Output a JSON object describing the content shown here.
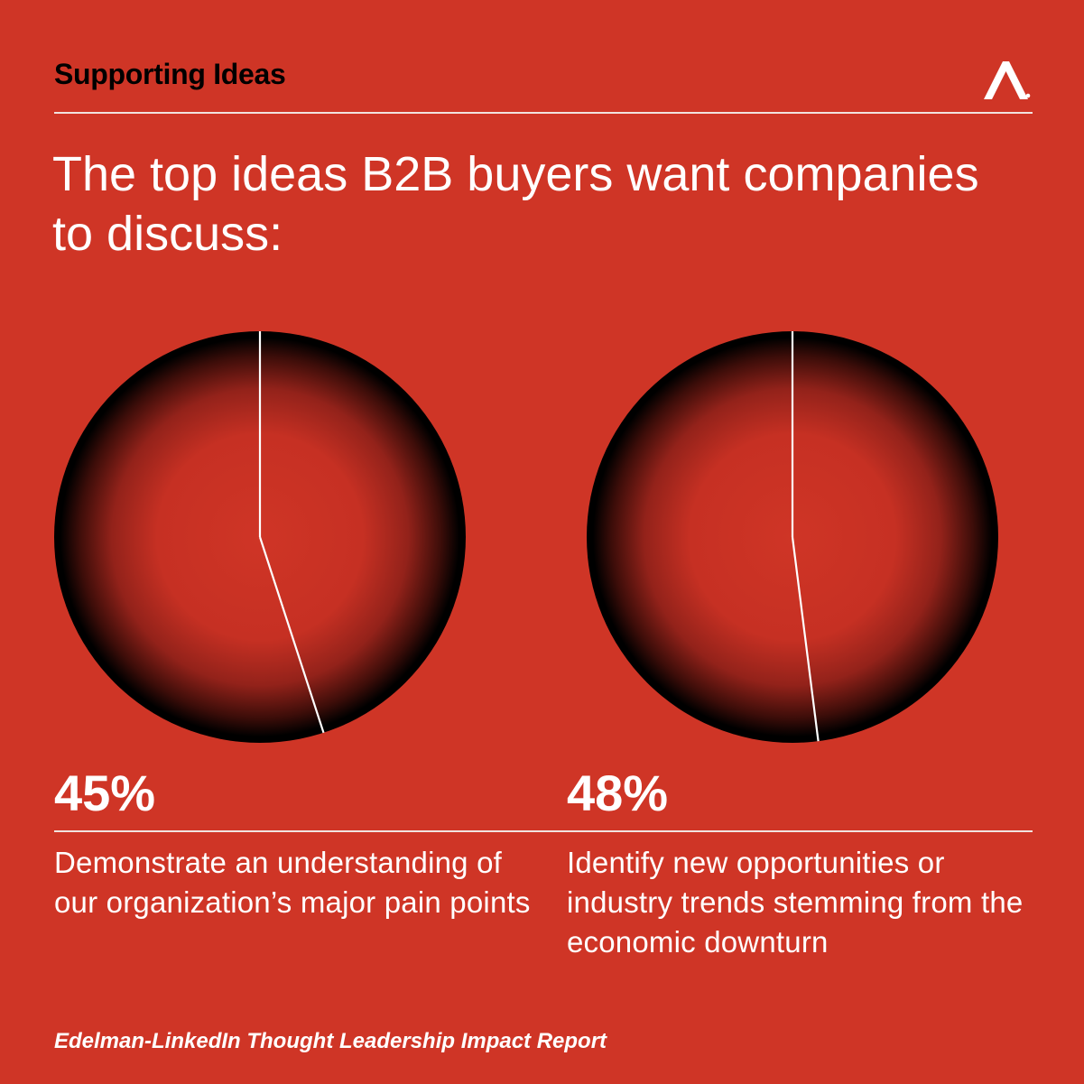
{
  "header": {
    "section_title": "Supporting Ideas",
    "logo_icon": "edelman-a-logo-icon"
  },
  "headline": "The top ideas B2B buyers want companies to discuss:",
  "colors": {
    "background": "#cf3526",
    "pie_center": "#cf3526",
    "pie_edge": "#000000",
    "divider": "#ffffff",
    "section_title": "#000000"
  },
  "chart_data": [
    {
      "type": "pie",
      "categories": [
        "Demonstrate an understanding of our organization’s major pain points",
        ""
      ],
      "values": [
        45,
        55
      ],
      "data_label": "45%",
      "title": "",
      "legend": "none"
    },
    {
      "type": "pie",
      "categories": [
        "Identify new opportunities or industry trends stemming from the economic downturn",
        ""
      ],
      "values": [
        48,
        52
      ],
      "data_label": "48%",
      "title": "",
      "legend": "none"
    }
  ],
  "stats": [
    {
      "value": "45%",
      "label": "Demonstrate an understanding of our organization’s major pain points"
    },
    {
      "value": "48%",
      "label": "Identify new opportunities or industry trends stemming from the economic downturn"
    }
  ],
  "source": "Edelman-LinkedIn Thought Leadership Impact Report"
}
